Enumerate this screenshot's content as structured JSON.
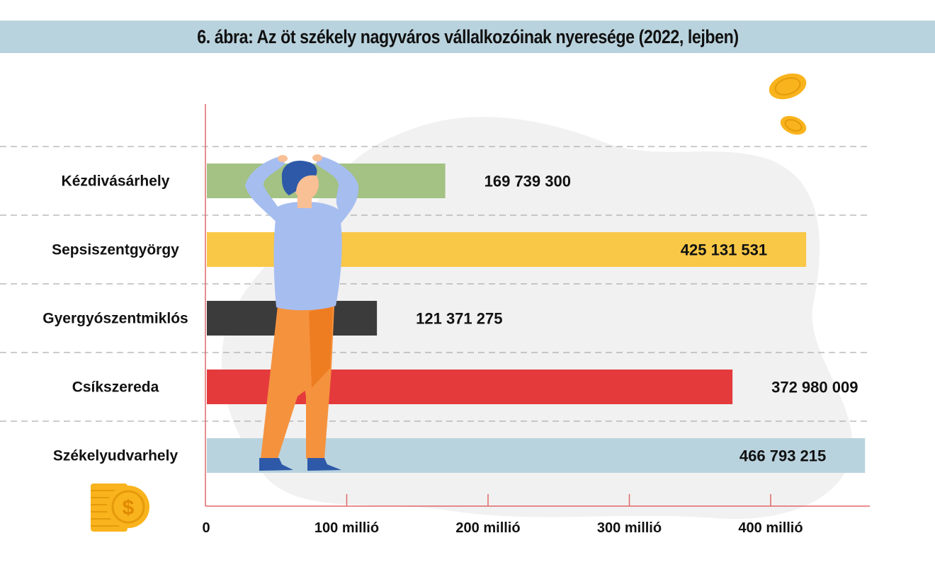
{
  "title": "6. ábra: Az öt székely nagyváros vállalkozóinak nyeresége (2022, lejben)",
  "chart_data": {
    "type": "bar",
    "orientation": "horizontal",
    "title": "6. ábra: Az öt székely nagyváros vállalkozóinak nyeresége (2022, lejben)",
    "categories": [
      "Kézdivásárhely",
      "Sepsiszentgyörgy",
      "Gyergyószentmiklós",
      "Csíkszereda",
      "Székelyudvarhely"
    ],
    "values": [
      169739300,
      425131531,
      121371275,
      372980009,
      466793215
    ],
    "value_labels": [
      "169 739 300",
      "425 131 531",
      "121 371 275",
      "372 980 009",
      "466 793 215"
    ],
    "colors": [
      "#a3c283",
      "#f9c847",
      "#3b3b3b",
      "#e43a3c",
      "#b9d3de"
    ],
    "xticks": [
      0,
      100000000,
      200000000,
      300000000,
      400000000
    ],
    "xtick_labels": [
      "0",
      "100 millió",
      "200 millió",
      "300 millió",
      "400 millió"
    ],
    "xlim": [
      0,
      470000000
    ],
    "grid": "dashed separators between rows",
    "legend": "none"
  }
}
